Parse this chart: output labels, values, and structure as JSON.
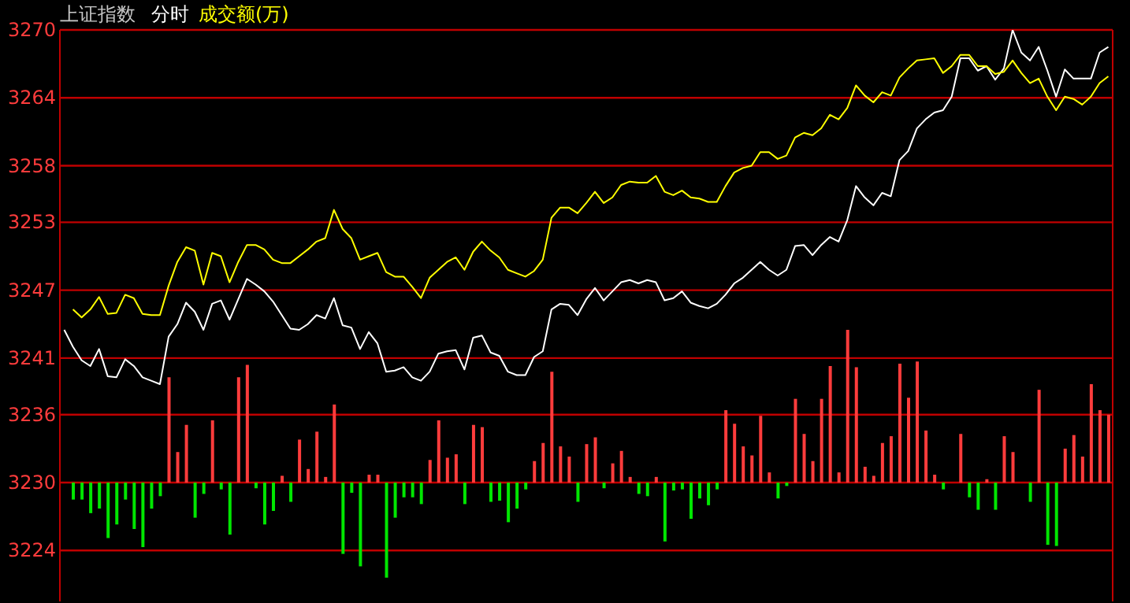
{
  "chart_data": {
    "type": "line",
    "title": "上证指数",
    "subtitle": "分时",
    "categories": [
      null,
      null,
      null,
      null,
      null,
      null,
      null,
      null,
      null,
      null,
      null,
      null,
      null,
      null,
      null,
      null,
      null,
      null,
      null,
      null,
      null,
      null,
      null,
      null,
      null,
      null,
      null,
      null,
      null,
      null,
      null,
      null,
      null,
      null,
      null,
      null,
      null,
      null,
      null,
      null,
      null,
      null,
      null,
      null,
      null,
      null,
      null,
      null,
      null,
      null,
      null,
      null,
      null,
      null,
      null,
      null,
      null,
      null,
      null,
      null,
      null,
      null,
      null,
      null,
      null,
      null,
      null,
      null,
      null,
      null,
      null,
      null,
      null,
      null,
      null,
      null,
      null,
      null,
      null,
      null,
      null,
      null,
      null,
      null,
      null,
      null,
      null,
      null,
      null,
      null,
      null,
      null,
      null,
      null,
      null,
      null,
      null,
      null,
      null,
      null,
      null,
      null,
      null,
      null,
      null,
      null,
      null,
      null,
      null,
      null,
      null,
      null,
      null,
      null,
      null,
      null,
      null,
      null,
      null,
      null,
      null
    ],
    "ylim": [
      3219.5,
      3270
    ],
    "yticks": [
      3224,
      3230,
      3236,
      3241,
      3247,
      3253,
      3258,
      3264,
      3270
    ],
    "grid": "y",
    "tick_labels": "y",
    "series": [
      {
        "type": "bar",
        "base": [
          null,
          3230,
          3230,
          3230,
          3230,
          3230,
          3230,
          3230,
          3230,
          3230,
          3230,
          3230,
          3230,
          3230,
          3230,
          3230,
          3230,
          3230,
          3230,
          3230,
          3230,
          3230,
          3230,
          3230,
          3230,
          3230,
          3230,
          3230,
          3230,
          3230,
          3230,
          3230,
          3230,
          3230,
          3230,
          3230,
          3230,
          3230,
          3230,
          3230,
          3230,
          3230,
          3230,
          3230,
          3230,
          3230,
          3230,
          3230,
          3230,
          3230,
          3230,
          3230,
          3230,
          3230,
          3230,
          3230,
          3230,
          3230,
          3230,
          3230,
          3230,
          3230,
          3230,
          3230,
          3230,
          3230,
          3230,
          3230,
          3230,
          3230,
          3230,
          3230,
          3230,
          3230,
          3230,
          3230,
          3230,
          3230,
          3230,
          3230,
          3230,
          3230,
          3230,
          3230,
          3230,
          3230,
          3230,
          3230,
          3230,
          3230,
          3230,
          3230,
          3230,
          3230,
          3230,
          3230,
          3230,
          3230,
          3230,
          3230,
          3230,
          3230,
          null,
          3230,
          3230,
          3230,
          3230,
          3230,
          3230,
          3230,
          null,
          3230,
          3230,
          3230,
          3230,
          3230,
          3230,
          3230,
          3230,
          3230,
          3230
        ],
        "values": [
          null,
          -1.5,
          -1.5,
          -2.7,
          -2.3,
          -4.9,
          -3.7,
          -1.5,
          -4.1,
          -5.7,
          -2.3,
          -1.2,
          9.3,
          2.7,
          5.1,
          -3.1,
          -1.0,
          5.5,
          -0.6,
          -4.6,
          9.3,
          10.4,
          -0.5,
          -3.7,
          -2.5,
          0.6,
          -1.7,
          3.8,
          1.2,
          4.5,
          0.5,
          6.9,
          -6.3,
          -0.9,
          -7.4,
          0.7,
          0.7,
          -8.4,
          -3.1,
          -1.3,
          -1.3,
          -1.9,
          2.0,
          5.5,
          2.2,
          2.5,
          -1.9,
          5.1,
          4.9,
          -1.7,
          -1.6,
          -3.5,
          -2.3,
          -0.6,
          1.9,
          3.5,
          9.8,
          3.2,
          2.3,
          -1.7,
          3.4,
          4.0,
          -0.5,
          1.7,
          2.8,
          0.5,
          -1.0,
          -1.2,
          0.5,
          -5.2,
          -0.7,
          -0.6,
          -3.2,
          -1.4,
          -2.0,
          -0.6,
          6.4,
          5.2,
          3.2,
          2.4,
          5.9,
          0.9,
          -1.4,
          -0.3,
          7.4,
          4.3,
          1.9,
          7.4,
          10.3,
          0.9,
          13.5,
          10.2,
          1.4,
          0.6,
          3.5,
          4.1,
          10.5,
          7.5,
          10.7,
          4.6,
          0.7,
          -0.6,
          null,
          4.3,
          -1.3,
          -2.4,
          0.3,
          -2.4,
          4.1,
          2.7,
          null,
          -1.7,
          8.2,
          -5.5,
          -5.6,
          3.0,
          4.2,
          2.3,
          8.7,
          6.4,
          6.0
        ],
        "colors": [
          null,
          "#00e600",
          "#00e600",
          "#00e600",
          "#00e600",
          "#00e600",
          "#00e600",
          "#00e600",
          "#00e600",
          "#00e600",
          "#00e600",
          "#00e600",
          "#ff3c3c",
          "#ff3c3c",
          "#ff3c3c",
          "#00e600",
          "#00e600",
          "#ff3c3c",
          "#00e600",
          "#00e600",
          "#ff3c3c",
          "#ff3c3c",
          "#00e600",
          "#00e600",
          "#00e600",
          "#ff3c3c",
          "#00e600",
          "#ff3c3c",
          "#ff3c3c",
          "#ff3c3c",
          "#ff3c3c",
          "#ff3c3c",
          "#00e600",
          "#00e600",
          "#00e600",
          "#ff3c3c",
          "#ff3c3c",
          "#00e600",
          "#00e600",
          "#00e600",
          "#00e600",
          "#00e600",
          "#ff3c3c",
          "#ff3c3c",
          "#ff3c3c",
          "#ff3c3c",
          "#00e600",
          "#ff3c3c",
          "#ff3c3c",
          "#00e600",
          "#00e600",
          "#00e600",
          "#00e600",
          "#00e600",
          "#ff3c3c",
          "#ff3c3c",
          "#ff3c3c",
          "#ff3c3c",
          "#ff3c3c",
          "#00e600",
          "#ff3c3c",
          "#ff3c3c",
          "#00e600",
          "#ff3c3c",
          "#ff3c3c",
          "#ff3c3c",
          "#00e600",
          "#00e600",
          "#ff3c3c",
          "#00e600",
          "#00e600",
          "#00e600",
          "#00e600",
          "#00e600",
          "#00e600",
          "#00e600",
          "#ff3c3c",
          "#ff3c3c",
          "#ff3c3c",
          "#ff3c3c",
          "#ff3c3c",
          "#ff3c3c",
          "#00e600",
          "#00e600",
          "#ff3c3c",
          "#ff3c3c",
          "#ff3c3c",
          "#ff3c3c",
          "#ff3c3c",
          "#ff3c3c",
          "#ff3c3c",
          "#ff3c3c",
          "#ff3c3c",
          "#ff3c3c",
          "#ff3c3c",
          "#ff3c3c",
          "#ff3c3c",
          "#ff3c3c",
          "#ff3c3c",
          "#ff3c3c",
          "#ff3c3c",
          "#00e600",
          null,
          "#ff3c3c",
          "#00e600",
          "#00e600",
          "#ff3c3c",
          "#00e600",
          "#ff3c3c",
          "#ff3c3c",
          null,
          "#00e600",
          "#ff3c3c",
          "#00e600",
          "#00e600",
          "#ff3c3c",
          "#ff3c3c",
          "#ff3c3c",
          "#ff3c3c",
          "#ff3c3c",
          "#ff3c3c"
        ]
      },
      {
        "color": "#ffffff",
        "values": [
          3243.5,
          3242.0,
          3240.8,
          3240.3,
          3241.8,
          3239.4,
          3239.3,
          3240.9,
          3240.3,
          3239.3,
          3239.0,
          3238.7,
          3242.9,
          3244.0,
          3245.9,
          3245.1,
          3243.5,
          3245.8,
          3246.1,
          3244.4,
          3246.2,
          3248.0,
          3247.5,
          3246.9,
          3246.0,
          3244.8,
          3243.6,
          3243.5,
          3244.0,
          3244.8,
          3244.5,
          3246.3,
          3243.9,
          3243.7,
          3241.8,
          3243.3,
          3242.3,
          3239.8,
          3239.9,
          3240.2,
          3239.3,
          3239.0,
          3239.8,
          3241.4,
          3241.6,
          3241.7,
          3240.0,
          3242.8,
          3243.0,
          3241.5,
          3241.2,
          3239.8,
          3239.5,
          3239.5,
          3241.1,
          3241.6,
          3245.3,
          3245.8,
          3245.7,
          3244.8,
          3246.2,
          3247.2,
          3246.1,
          3246.9,
          3247.7,
          3247.9,
          3247.6,
          3247.9,
          3247.7,
          3246.1,
          3246.3,
          3246.9,
          3245.9,
          3245.6,
          3245.4,
          3245.8,
          3246.6,
          3247.6,
          3248.1,
          3248.8,
          3249.5,
          3248.8,
          3248.3,
          3248.8,
          3250.9,
          3251.0,
          3250.1,
          3251.0,
          3251.7,
          3251.3,
          3253.2,
          3256.2,
          3255.2,
          3254.5,
          3255.6,
          3255.3,
          3258.5,
          3259.3,
          3261.3,
          3262.1,
          3262.7,
          3262.9,
          3264.1,
          3267.5,
          3267.5,
          3266.4,
          3266.8,
          3265.6,
          3266.6,
          3270.0,
          3268.0,
          3267.3,
          3268.5,
          3266.4,
          3264.1,
          3266.5,
          3265.7,
          3265.7,
          3265.7,
          3268.0,
          3268.5
        ]
      },
      {
        "name": "成交额(万)",
        "color": "#ffff00",
        "values": [
          null,
          3245.3,
          3244.6,
          3245.3,
          3246.4,
          3244.9,
          3245.0,
          3246.6,
          3246.3,
          3244.9,
          3244.8,
          3244.8,
          3247.4,
          3249.5,
          3250.8,
          3250.5,
          3247.5,
          3250.3,
          3250.0,
          3247.7,
          3249.5,
          3251.0,
          3251.0,
          3250.6,
          3249.7,
          3249.4,
          3249.4,
          3250.0,
          3250.6,
          3251.3,
          3251.6,
          3254.1,
          3252.4,
          3251.6,
          3249.7,
          3250.0,
          3250.3,
          3248.6,
          3248.2,
          3248.2,
          3247.3,
          3246.3,
          3248.1,
          3248.8,
          3249.5,
          3249.9,
          3248.8,
          3250.4,
          3251.3,
          3250.5,
          3249.9,
          3248.8,
          3248.5,
          3248.2,
          3248.7,
          3249.7,
          3253.4,
          3254.3,
          3254.3,
          3253.8,
          3254.7,
          3255.7,
          3254.7,
          3255.2,
          3256.3,
          3256.6,
          3256.5,
          3256.5,
          3257.1,
          3255.7,
          3255.4,
          3255.8,
          3255.2,
          3255.1,
          3254.8,
          3254.8,
          3256.2,
          3257.4,
          3257.8,
          3258.0,
          3259.2,
          3259.2,
          3258.6,
          3258.9,
          3260.5,
          3260.9,
          3260.7,
          3261.3,
          3262.5,
          3262.1,
          3263.1,
          3265.1,
          3264.2,
          3263.6,
          3264.5,
          3264.2,
          3265.8,
          3266.6,
          3267.3,
          3267.4,
          3267.5,
          3266.2,
          3266.8,
          3267.8,
          3267.8,
          3266.8,
          3266.8,
          3266.1,
          3266.3,
          3267.3,
          3266.2,
          3265.3,
          3265.7,
          3264.1,
          3262.9,
          3264.1,
          3263.9,
          3263.4,
          3264.1,
          3265.3,
          3265.9
        ]
      }
    ]
  }
}
